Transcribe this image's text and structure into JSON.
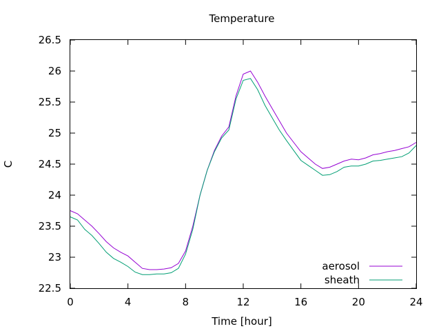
{
  "chart_data": {
    "type": "line",
    "title": "Temperature",
    "xlabel": "Time [hour]",
    "ylabel": "C",
    "xlim": [
      0,
      24
    ],
    "ylim": [
      22.5,
      26.5
    ],
    "xticks": [
      "0",
      "4",
      "8",
      "12",
      "16",
      "20",
      "24"
    ],
    "yticks": [
      "22.5",
      "23",
      "23.5",
      "24",
      "24.5",
      "25",
      "25.5",
      "26",
      "26.5"
    ],
    "grid": false,
    "legend_position": "bottom-right",
    "series": [
      {
        "name": "aerosol",
        "color": "#9400d3",
        "x": [
          0,
          0.5,
          1,
          1.5,
          2,
          2.5,
          3,
          3.5,
          4,
          4.5,
          5,
          5.5,
          6,
          6.5,
          7,
          7.5,
          8,
          8.5,
          9,
          9.5,
          10,
          10.5,
          11,
          11.5,
          12,
          12.5,
          13,
          13.5,
          14,
          14.5,
          15,
          15.5,
          16,
          16.5,
          17,
          17.5,
          18,
          18.5,
          19,
          19.5,
          20,
          20.5,
          21,
          21.5,
          22,
          22.5,
          23,
          23.5,
          24
        ],
        "y": [
          23.75,
          23.7,
          23.6,
          23.5,
          23.38,
          23.25,
          23.15,
          23.08,
          23.02,
          22.92,
          22.82,
          22.8,
          22.8,
          22.81,
          22.83,
          22.9,
          23.1,
          23.5,
          24.0,
          24.4,
          24.72,
          24.95,
          25.1,
          25.6,
          25.95,
          26.0,
          25.82,
          25.6,
          25.4,
          25.2,
          25.0,
          24.85,
          24.7,
          24.6,
          24.5,
          24.43,
          24.45,
          24.5,
          24.55,
          24.58,
          24.57,
          24.6,
          24.65,
          24.67,
          24.7,
          24.72,
          24.75,
          24.78,
          24.85
        ]
      },
      {
        "name": "sheath",
        "color": "#009e73",
        "x": [
          0,
          0.5,
          1,
          1.5,
          2,
          2.5,
          3,
          3.5,
          4,
          4.5,
          5,
          5.5,
          6,
          6.5,
          7,
          7.5,
          8,
          8.5,
          9,
          9.5,
          10,
          10.5,
          11,
          11.5,
          12,
          12.5,
          13,
          13.5,
          14,
          14.5,
          15,
          15.5,
          16,
          16.5,
          17,
          17.5,
          18,
          18.5,
          19,
          19.5,
          20,
          20.5,
          21,
          21.5,
          22,
          22.5,
          23,
          23.5,
          24
        ],
        "y": [
          23.65,
          23.6,
          23.45,
          23.35,
          23.22,
          23.08,
          22.98,
          22.92,
          22.85,
          22.76,
          22.72,
          22.72,
          22.73,
          22.73,
          22.75,
          22.82,
          23.05,
          23.45,
          24.0,
          24.4,
          24.7,
          24.92,
          25.05,
          25.55,
          25.85,
          25.88,
          25.7,
          25.45,
          25.25,
          25.05,
          24.88,
          24.72,
          24.56,
          24.48,
          24.4,
          24.32,
          24.33,
          24.38,
          24.45,
          24.47,
          24.47,
          24.5,
          24.55,
          24.56,
          24.58,
          24.6,
          24.62,
          24.68,
          24.8
        ]
      }
    ]
  }
}
